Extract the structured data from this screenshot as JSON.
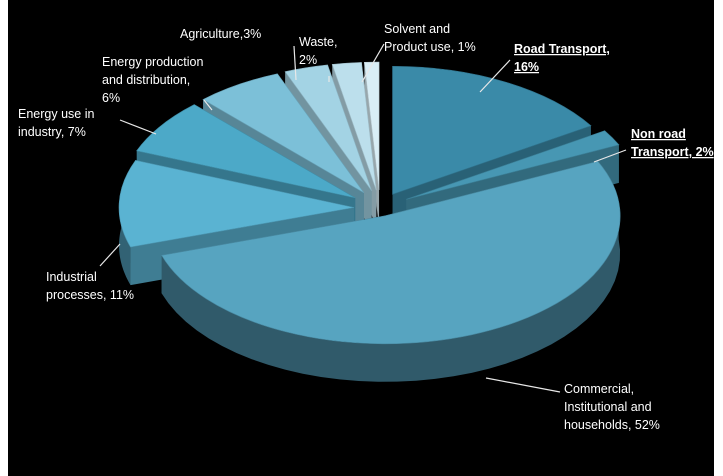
{
  "colors": {
    "background": "#000000",
    "label_text": "#ffffff",
    "leader_line": "#e8e8e8"
  },
  "chart_data": {
    "type": "pie",
    "style": "3d-exploded",
    "title": "",
    "legend": "none",
    "slices": [
      {
        "label": "Road Transport,",
        "label_line2": "16%",
        "value": 16,
        "color": "#3a8aa8",
        "emphasis": true
      },
      {
        "label": "Non road",
        "label_line2": "Transport, 2%",
        "value": 2,
        "color": "#4797b3",
        "emphasis": true
      },
      {
        "label": "Commercial,",
        "label_line2": "Institutional and",
        "label_line3": "households, 52%",
        "value": 52,
        "color": "#57a4c0",
        "emphasis": false
      },
      {
        "label": "Industrial",
        "label_line2": "processes, 11%",
        "value": 11,
        "color": "#5ab3d2",
        "emphasis": false
      },
      {
        "label": "Energy use in",
        "label_line2": "industry, 7%",
        "value": 7,
        "color": "#4ca9c8",
        "emphasis": false
      },
      {
        "label": "Energy production",
        "label_line2": "and distribution,",
        "label_line3": "6%",
        "value": 6,
        "color": "#7cc0d8",
        "emphasis": false
      },
      {
        "label": "Agriculture,3%",
        "value": 3,
        "color": "#a3d3e4",
        "emphasis": false
      },
      {
        "label": "Waste,",
        "label_line2": "2%",
        "value": 2,
        "color": "#bcdfec",
        "emphasis": false
      },
      {
        "label": "Solvent and",
        "label_line2": "Product use, 1%",
        "value": 1,
        "color": "#d9eef6",
        "emphasis": false
      }
    ]
  }
}
